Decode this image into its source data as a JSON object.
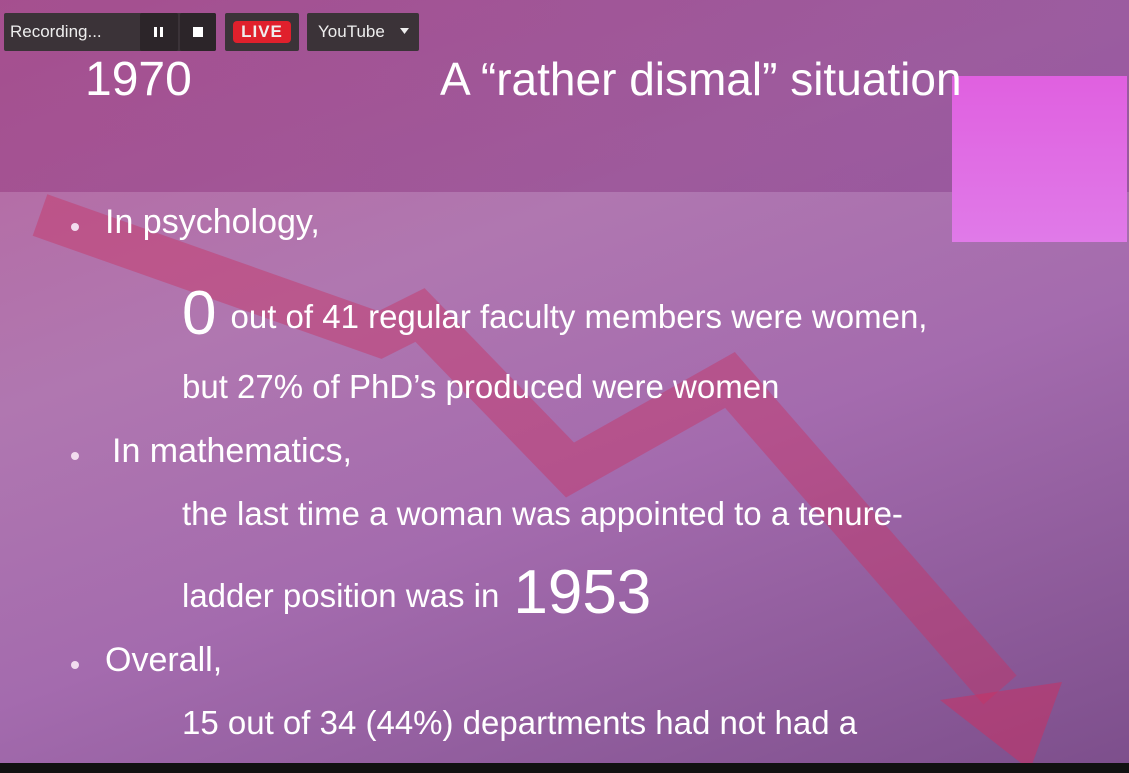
{
  "toolbar": {
    "recording": "Recording...",
    "live": "LIVE",
    "destination": "YouTube"
  },
  "slide": {
    "year": "1970",
    "title": "A “rather dismal” situation",
    "bullets": [
      {
        "heading": "In psychology,",
        "lines": [
          [
            "0",
            "out of 41 regular faculty members were women,"
          ],
          [
            "but 27% of PhD’s produced were women"
          ]
        ]
      },
      {
        "heading": "In mathematics,",
        "lines": [
          [
            "the last time a woman was appointed to a tenure-"
          ],
          [
            "ladder position was in",
            "1953"
          ]
        ]
      },
      {
        "heading": "Overall,",
        "lines": [
          [
            "15 out of 34 (44%) departments had not had a"
          ]
        ]
      }
    ]
  }
}
